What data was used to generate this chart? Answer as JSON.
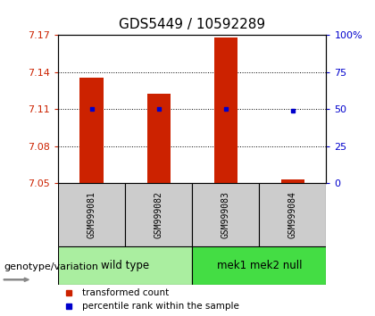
{
  "title": "GDS5449 / 10592289",
  "samples": [
    "GSM999081",
    "GSM999082",
    "GSM999083",
    "GSM999084"
  ],
  "bar_values": [
    7.135,
    7.122,
    7.168,
    7.053
  ],
  "percentile_values": [
    7.11,
    7.11,
    7.11,
    7.109
  ],
  "y_min": 7.05,
  "y_max": 7.17,
  "y_ticks_left": [
    7.05,
    7.08,
    7.11,
    7.14,
    7.17
  ],
  "y_ticks_right": [
    0,
    25,
    50,
    75,
    100
  ],
  "grid_lines": [
    7.08,
    7.11,
    7.14
  ],
  "bar_color": "#cc2200",
  "percentile_color": "#0000cc",
  "bar_width": 0.35,
  "groups": [
    {
      "label": "wild type",
      "samples": [
        0,
        1
      ],
      "color": "#aaeea0"
    },
    {
      "label": "mek1 mek2 null",
      "samples": [
        2,
        3
      ],
      "color": "#44dd44"
    }
  ],
  "group_label_prefix": "genotype/variation",
  "legend_bar_label": "transformed count",
  "legend_percentile_label": "percentile rank within the sample",
  "title_fontsize": 11,
  "tick_fontsize": 8,
  "sample_label_fontsize": 7,
  "group_label_fontsize": 8.5,
  "plot_bg": "#ffffff",
  "sample_area_bg": "#cccccc"
}
